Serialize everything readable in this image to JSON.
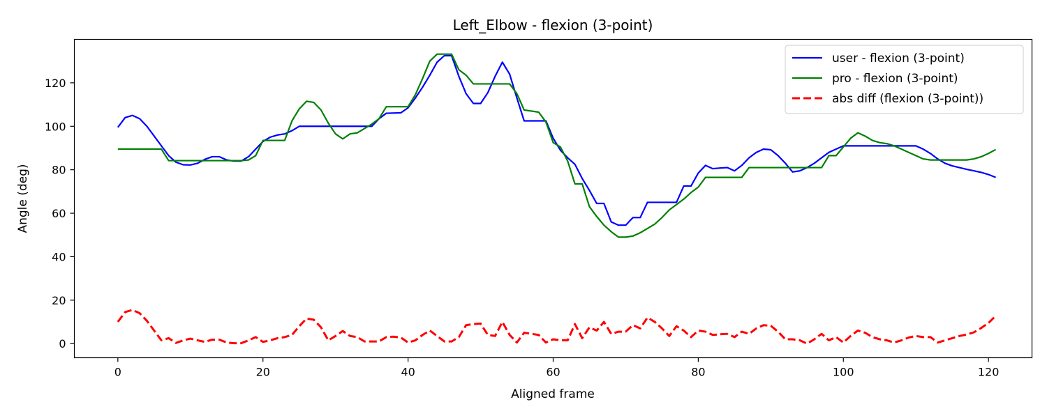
{
  "chart_data": {
    "type": "line",
    "title": "Left_Elbow - flexion (3-point)",
    "xlabel": "Aligned frame",
    "ylabel": "Angle (deg)",
    "xlim": [
      -6,
      126
    ],
    "ylim": [
      -6.5,
      140
    ],
    "xticks": [
      0,
      20,
      40,
      60,
      80,
      100,
      120
    ],
    "yticks": [
      0,
      20,
      40,
      60,
      80,
      100,
      120
    ],
    "grid": false,
    "legend_position": "upper right",
    "series": [
      {
        "name": "user - flexion (3-point)",
        "color": "#0000ff",
        "style": "solid",
        "points": [
          [
            0,
            99.5
          ],
          [
            1,
            104
          ],
          [
            2,
            105
          ],
          [
            3,
            103.5
          ],
          [
            4,
            100
          ],
          [
            5,
            95.5
          ],
          [
            6,
            91
          ],
          [
            7,
            86.5
          ],
          [
            8,
            83.5
          ],
          [
            9,
            82.3
          ],
          [
            10,
            82.2
          ],
          [
            11,
            83
          ],
          [
            12,
            84.8
          ],
          [
            13,
            86
          ],
          [
            14,
            86
          ],
          [
            15,
            84.5
          ],
          [
            16,
            84
          ],
          [
            17,
            84
          ],
          [
            18,
            86
          ],
          [
            19,
            89.5
          ],
          [
            20,
            93
          ],
          [
            21,
            95
          ],
          [
            22,
            96
          ],
          [
            23,
            96.5
          ],
          [
            24,
            98
          ],
          [
            25,
            100
          ],
          [
            30,
            100
          ],
          [
            35,
            100
          ],
          [
            36,
            103.5
          ],
          [
            37,
            106
          ],
          [
            39,
            106.2
          ],
          [
            40,
            108.5
          ],
          [
            41,
            113
          ],
          [
            42,
            118
          ],
          [
            43,
            123.5
          ],
          [
            44,
            129.5
          ],
          [
            45,
            132.5
          ],
          [
            46,
            132.5
          ],
          [
            47,
            123
          ],
          [
            48,
            115
          ],
          [
            49,
            110.5
          ],
          [
            50,
            110.5
          ],
          [
            51,
            115.5
          ],
          [
            52,
            123
          ],
          [
            53,
            129.5
          ],
          [
            54,
            124
          ],
          [
            55,
            113
          ],
          [
            56,
            102.5
          ],
          [
            59,
            102.5
          ],
          [
            60,
            94.5
          ],
          [
            61,
            89
          ],
          [
            62,
            85.5
          ],
          [
            63,
            82.5
          ],
          [
            64,
            76
          ],
          [
            65,
            70.5
          ],
          [
            66,
            64.5
          ],
          [
            67,
            64.5
          ],
          [
            68,
            56
          ],
          [
            69,
            54.5
          ],
          [
            70,
            54.5
          ],
          [
            71,
            58
          ],
          [
            72,
            58
          ],
          [
            73,
            65
          ],
          [
            77,
            65
          ],
          [
            78,
            72.5
          ],
          [
            79,
            72.5
          ],
          [
            80,
            78.5
          ],
          [
            81,
            82
          ],
          [
            82,
            80.5
          ],
          [
            83,
            80.8
          ],
          [
            84,
            81
          ],
          [
            85,
            79.5
          ],
          [
            86,
            82
          ],
          [
            87,
            85.5
          ],
          [
            88,
            88
          ],
          [
            89,
            89.5
          ],
          [
            90,
            89.2
          ],
          [
            91,
            86.5
          ],
          [
            92,
            83
          ],
          [
            93,
            79
          ],
          [
            94,
            79.5
          ],
          [
            95,
            81
          ],
          [
            96,
            83
          ],
          [
            97,
            85.5
          ],
          [
            98,
            88
          ],
          [
            99,
            89.5
          ],
          [
            100,
            91
          ],
          [
            110,
            91
          ],
          [
            111,
            89.5
          ],
          [
            112,
            87.5
          ],
          [
            113,
            85
          ],
          [
            114,
            83
          ],
          [
            115,
            81.8
          ],
          [
            116,
            81
          ],
          [
            117,
            80.2
          ],
          [
            118,
            79.5
          ],
          [
            119,
            78.8
          ],
          [
            120,
            77.8
          ],
          [
            121,
            76.5
          ]
        ]
      },
      {
        "name": "pro - flexion (3-point)",
        "color": "#008000",
        "style": "solid",
        "points": [
          [
            0,
            89.5
          ],
          [
            6,
            89.5
          ],
          [
            7,
            84.2
          ],
          [
            12,
            84.2
          ],
          [
            17,
            84.2
          ],
          [
            18,
            84.5
          ],
          [
            19,
            86.5
          ],
          [
            20,
            93.5
          ],
          [
            23,
            93.5
          ],
          [
            24,
            102.5
          ],
          [
            25,
            108
          ],
          [
            26,
            111.5
          ],
          [
            27,
            111
          ],
          [
            28,
            107.5
          ],
          [
            29,
            101.5
          ],
          [
            30,
            96.5
          ],
          [
            31,
            94.2
          ],
          [
            32,
            96.5
          ],
          [
            33,
            97
          ],
          [
            34,
            99
          ],
          [
            35,
            101
          ],
          [
            36,
            103.5
          ],
          [
            37,
            109
          ],
          [
            40,
            109
          ],
          [
            41,
            114.5
          ],
          [
            42,
            122
          ],
          [
            43,
            130
          ],
          [
            44,
            133.2
          ],
          [
            46,
            133.2
          ],
          [
            47,
            126
          ],
          [
            48,
            123.5
          ],
          [
            49,
            119.5
          ],
          [
            50,
            119.5
          ],
          [
            54,
            119.5
          ],
          [
            55,
            115
          ],
          [
            56,
            107.5
          ],
          [
            57,
            107
          ],
          [
            58,
            106.5
          ],
          [
            59,
            102
          ],
          [
            60,
            92.5
          ],
          [
            61,
            90.5
          ],
          [
            62,
            84
          ],
          [
            63,
            73.5
          ],
          [
            64,
            73.5
          ],
          [
            65,
            63
          ],
          [
            66,
            58.5
          ],
          [
            67,
            54.5
          ],
          [
            68,
            51.5
          ],
          [
            69,
            49
          ],
          [
            70,
            49
          ],
          [
            71,
            49.5
          ],
          [
            72,
            51
          ],
          [
            73,
            53
          ],
          [
            74,
            55
          ],
          [
            75,
            58
          ],
          [
            76,
            61.5
          ],
          [
            77,
            64
          ],
          [
            78,
            66.5
          ],
          [
            79,
            69.5
          ],
          [
            80,
            72
          ],
          [
            81,
            76.5
          ],
          [
            86,
            76.5
          ],
          [
            87,
            81
          ],
          [
            96,
            81
          ],
          [
            97,
            81
          ],
          [
            98,
            86.5
          ],
          [
            99,
            86.5
          ],
          [
            100,
            90.5
          ],
          [
            101,
            94.5
          ],
          [
            102,
            97
          ],
          [
            103,
            95.5
          ],
          [
            104,
            93.5
          ],
          [
            105,
            92.5
          ],
          [
            106,
            92
          ],
          [
            107,
            91
          ],
          [
            108,
            89.5
          ],
          [
            109,
            88
          ],
          [
            110,
            86.5
          ],
          [
            111,
            85
          ],
          [
            112,
            84.5
          ],
          [
            117,
            84.5
          ],
          [
            118,
            85
          ],
          [
            119,
            86
          ],
          [
            120,
            87.5
          ],
          [
            121,
            89.3
          ]
        ]
      },
      {
        "name": "abs diff (flexion (3-point))",
        "color": "#ff0000",
        "style": "dashed",
        "points": [
          [
            0,
            10
          ],
          [
            1,
            14.5
          ],
          [
            2,
            15.5
          ],
          [
            3,
            14
          ],
          [
            4,
            10.5
          ],
          [
            5,
            6
          ],
          [
            6,
            1.5
          ],
          [
            7,
            2.5
          ],
          [
            8,
            0.3
          ],
          [
            9,
            1.5
          ],
          [
            10,
            2.3
          ],
          [
            11,
            1.5
          ],
          [
            12,
            0.8
          ],
          [
            13,
            1.8
          ],
          [
            14,
            1.8
          ],
          [
            15,
            0.5
          ],
          [
            16,
            0.2
          ],
          [
            17,
            0.2
          ],
          [
            18,
            1.5
          ],
          [
            19,
            3
          ],
          [
            20,
            0.8
          ],
          [
            21,
            1.5
          ],
          [
            22,
            2.5
          ],
          [
            23,
            3
          ],
          [
            24,
            4
          ],
          [
            25,
            8
          ],
          [
            26,
            11.5
          ],
          [
            27,
            11
          ],
          [
            28,
            7.5
          ],
          [
            29,
            1.5
          ],
          [
            30,
            3.5
          ],
          [
            31,
            5.8
          ],
          [
            32,
            3.5
          ],
          [
            33,
            3
          ],
          [
            34,
            1
          ],
          [
            35,
            1
          ],
          [
            36,
            1
          ],
          [
            37,
            3
          ],
          [
            38,
            3.2
          ],
          [
            39,
            2.8
          ],
          [
            40,
            0.5
          ],
          [
            41,
            1.5
          ],
          [
            42,
            4
          ],
          [
            43,
            6
          ],
          [
            44,
            3.5
          ],
          [
            45,
            1
          ],
          [
            46,
            1
          ],
          [
            47,
            3
          ],
          [
            48,
            8.5
          ],
          [
            49,
            9
          ],
          [
            50,
            9.2
          ],
          [
            51,
            4
          ],
          [
            52,
            3.5
          ],
          [
            53,
            10
          ],
          [
            54,
            4
          ],
          [
            55,
            0.5
          ],
          [
            56,
            5
          ],
          [
            57,
            4.5
          ],
          [
            58,
            4
          ],
          [
            59,
            0.5
          ],
          [
            60,
            2
          ],
          [
            61,
            1.5
          ],
          [
            62,
            1.5
          ],
          [
            63,
            9
          ],
          [
            64,
            2.5
          ],
          [
            65,
            7.5
          ],
          [
            66,
            6
          ],
          [
            67,
            10
          ],
          [
            68,
            4.5
          ],
          [
            69,
            5.5
          ],
          [
            70,
            5.5
          ],
          [
            71,
            8.5
          ],
          [
            72,
            7
          ],
          [
            73,
            12
          ],
          [
            74,
            10
          ],
          [
            75,
            7
          ],
          [
            76,
            3.5
          ],
          [
            77,
            8
          ],
          [
            78,
            6
          ],
          [
            79,
            3
          ],
          [
            80,
            6
          ],
          [
            81,
            5.5
          ],
          [
            82,
            4
          ],
          [
            83,
            4.3
          ],
          [
            84,
            4.5
          ],
          [
            85,
            3
          ],
          [
            86,
            5.5
          ],
          [
            87,
            4.5
          ],
          [
            88,
            7
          ],
          [
            89,
            8.5
          ],
          [
            90,
            8.2
          ],
          [
            91,
            5.5
          ],
          [
            92,
            2
          ],
          [
            93,
            2
          ],
          [
            94,
            1.5
          ],
          [
            95,
            0
          ],
          [
            96,
            2
          ],
          [
            97,
            4.5
          ],
          [
            98,
            1.5
          ],
          [
            99,
            3
          ],
          [
            100,
            0.5
          ],
          [
            101,
            3.5
          ],
          [
            102,
            6
          ],
          [
            103,
            5
          ],
          [
            104,
            3
          ],
          [
            105,
            2
          ],
          [
            106,
            1.5
          ],
          [
            107,
            0.5
          ],
          [
            108,
            1.5
          ],
          [
            109,
            2.8
          ],
          [
            110,
            3.5
          ],
          [
            111,
            3
          ],
          [
            112,
            3
          ],
          [
            113,
            0.5
          ],
          [
            114,
            1.5
          ],
          [
            115,
            2.5
          ],
          [
            116,
            3.5
          ],
          [
            117,
            4.2
          ],
          [
            118,
            5.2
          ],
          [
            119,
            7.2
          ],
          [
            120,
            9.5
          ],
          [
            121,
            12.8
          ]
        ]
      }
    ]
  }
}
